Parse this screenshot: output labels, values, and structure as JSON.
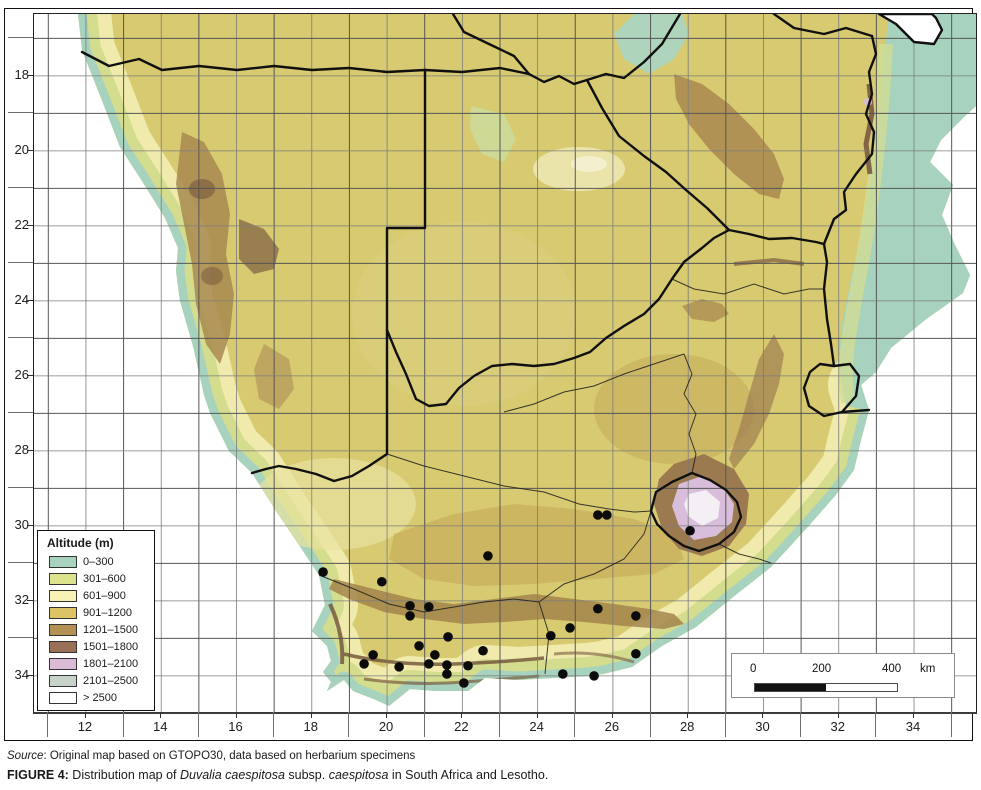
{
  "axes": {
    "x": {
      "values": [
        12,
        14,
        16,
        18,
        20,
        22,
        24,
        26,
        28,
        30,
        32,
        34
      ]
    },
    "y": {
      "values": [
        18,
        20,
        22,
        24,
        26,
        28,
        30,
        32,
        34
      ]
    },
    "grid": {
      "lon_min": 11,
      "lon_max": 35,
      "lat_min": 17,
      "lat_max": 34
    }
  },
  "legend": {
    "title": "Altitude (m)",
    "entries": [
      {
        "label": "0–300",
        "color": "#a7d2bd"
      },
      {
        "label": "301–600",
        "color": "#dde28e"
      },
      {
        "label": "601–900",
        "color": "#f7f2b4"
      },
      {
        "label": "901–1200",
        "color": "#dcc465"
      },
      {
        "label": "1201–1500",
        "color": "#b29152"
      },
      {
        "label": "1501–1800",
        "color": "#9a6f58"
      },
      {
        "label": "1801–2100",
        "color": "#d9bbd6"
      },
      {
        "label": "2101–2500",
        "color": "#c7d2c8"
      },
      {
        "label": "> 2500",
        "color": "#ffffff"
      }
    ]
  },
  "scale_bar": {
    "tick0": "0",
    "tick1": "200",
    "tick2": "400",
    "unit": "km"
  },
  "source": {
    "label": "Source",
    "text": ": Original map based on GTOPO30, data based on herbarium specimens"
  },
  "caption": {
    "label": "FIGURE 4:",
    "pre": " Distribution map of ",
    "species": "Duvalia caespitosa",
    "mid": " subsp. ",
    "subspecies": "caespitosa",
    "post": " in South Africa and Lesotho."
  },
  "map": {
    "dot_color": "#0b0b0b",
    "occurrences": [
      {
        "lon": 22.68,
        "lat": 30.8
      },
      {
        "lon": 18.3,
        "lat": 31.23
      },
      {
        "lon": 19.86,
        "lat": 31.49
      },
      {
        "lon": 20.61,
        "lat": 32.13
      },
      {
        "lon": 21.11,
        "lat": 32.16
      },
      {
        "lon": 20.61,
        "lat": 32.4
      },
      {
        "lon": 21.62,
        "lat": 32.96
      },
      {
        "lon": 20.85,
        "lat": 33.2
      },
      {
        "lon": 21.27,
        "lat": 33.44
      },
      {
        "lon": 22.55,
        "lat": 33.33
      },
      {
        "lon": 19.63,
        "lat": 33.44
      },
      {
        "lon": 19.39,
        "lat": 33.68
      },
      {
        "lon": 20.32,
        "lat": 33.76
      },
      {
        "lon": 21.11,
        "lat": 33.68
      },
      {
        "lon": 21.59,
        "lat": 33.71
      },
      {
        "lon": 22.15,
        "lat": 33.73
      },
      {
        "lon": 21.59,
        "lat": 33.95
      },
      {
        "lon": 22.04,
        "lat": 34.19
      },
      {
        "lon": 25.6,
        "lat": 29.71
      },
      {
        "lon": 25.84,
        "lat": 29.71
      },
      {
        "lon": 28.05,
        "lat": 30.13
      },
      {
        "lon": 25.6,
        "lat": 32.21
      },
      {
        "lon": 26.61,
        "lat": 32.4
      },
      {
        "lon": 24.86,
        "lat": 32.72
      },
      {
        "lon": 24.35,
        "lat": 32.93
      },
      {
        "lon": 26.61,
        "lat": 33.41
      },
      {
        "lon": 24.67,
        "lat": 33.95
      },
      {
        "lon": 25.5,
        "lat": 34.0
      }
    ]
  }
}
